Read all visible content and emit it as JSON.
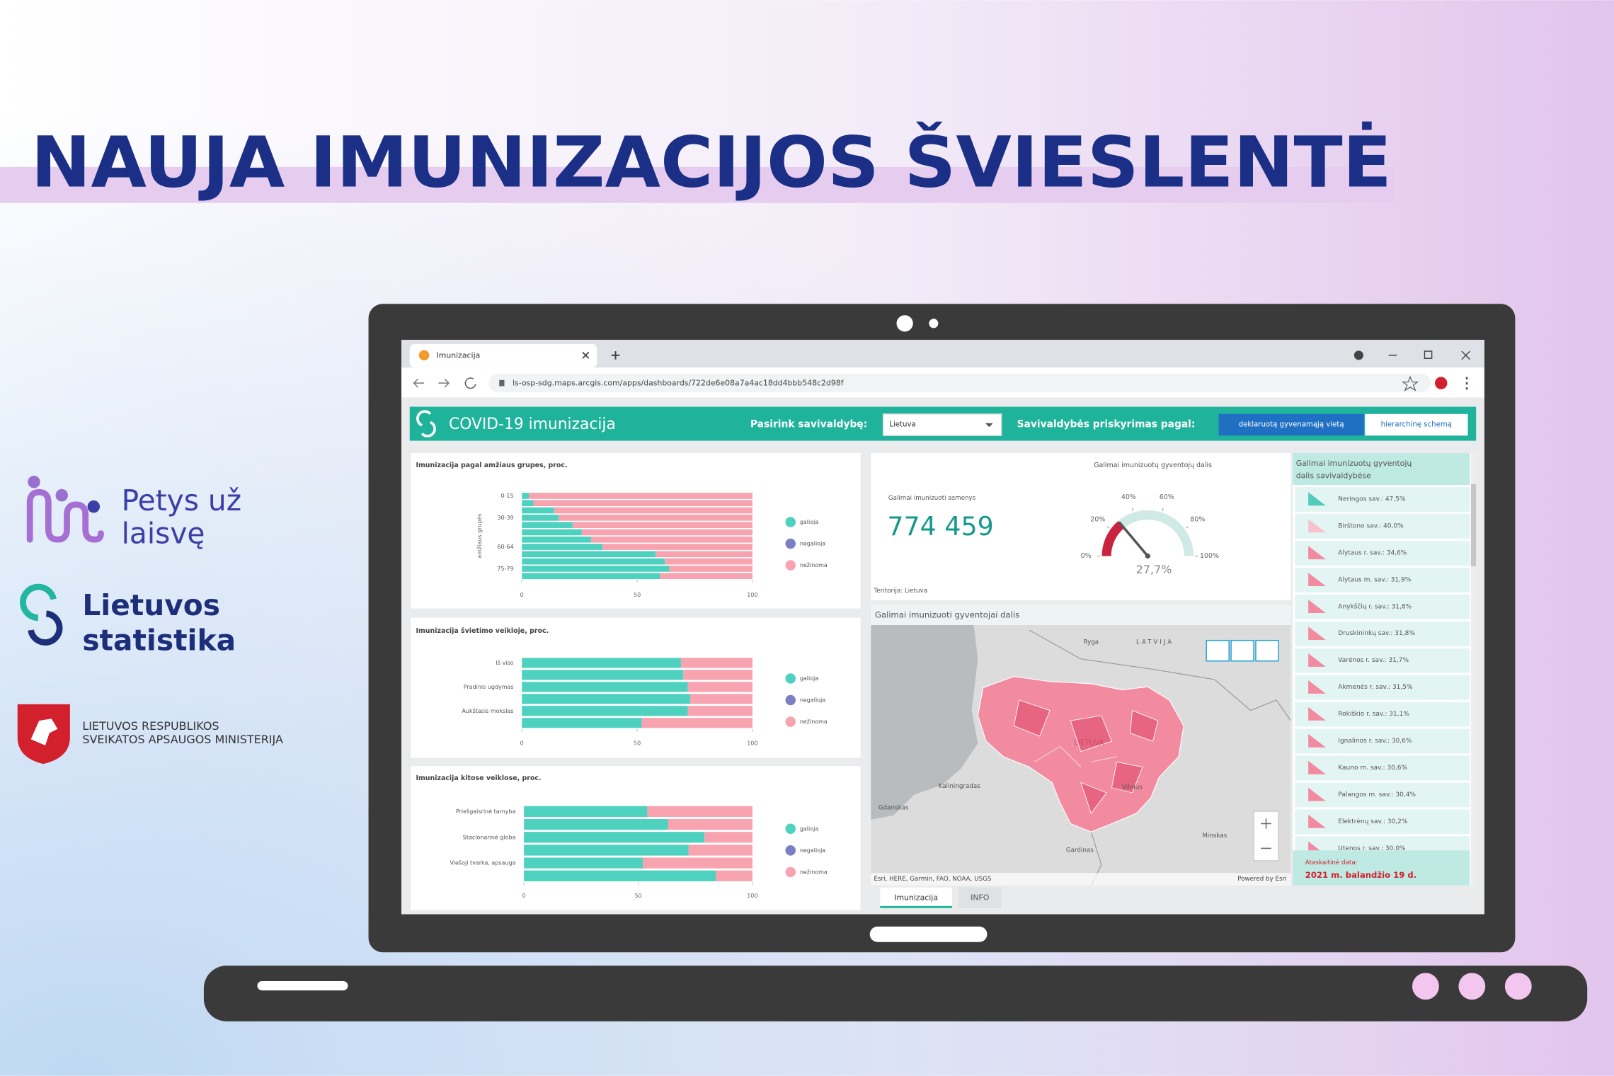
{
  "header": {
    "title": "NAUJA IMUNIZACIJOS ŠVIESLENTĖ"
  },
  "logos": {
    "petys": [
      "Petys už",
      "laisvę"
    ],
    "statistika": [
      "Lietuvos",
      "statistika"
    ],
    "ministerija": [
      "LIETUVOS RESPUBLIKOS",
      "SVEIKATOS APSAUGOS MINISTERIJA"
    ]
  },
  "browser": {
    "tab": "Imunizacija",
    "url": "ls-osp-sdg.maps.arcgis.com/apps/dashboards/722de6e08a7a4ac18dd4bbb548c2d98f"
  },
  "dashboard": {
    "title": "COVID-19 imunizacija",
    "select_label": "Pasirink savivaldybę:",
    "select_value": "Lietuva",
    "assign_label": "Savivaldybės priskyrimas pagal:",
    "buttons": [
      "deklaruotą gyvenamąją vietą",
      "hierarchinę schemą"
    ],
    "indicator": {
      "label": "Galimai imunizuoti asmenys",
      "value": "774 459",
      "territory": "Teritorija: Lietuva"
    },
    "map": {
      "title": "Galimai imunizuoti gyventojai dalis",
      "places": [
        "Ryga",
        "LATVIJA",
        "LIETUVA",
        "Vilnius",
        "Kaliningradas",
        "Gdanskas",
        "Gardinas",
        "Minskas"
      ],
      "attribution": "Esri, HERE, Garmin, FAO, NOAA, USGS",
      "powered": "Powered by Esri"
    },
    "list": {
      "header": [
        "Galimai imunizuotų gyventojų",
        "dalis savivaldybėse"
      ],
      "items": [
        "Neringos sav.: 47,5%",
        "Birštono sav.: 40,0%",
        "Alytaus r. sav.: 34,6%",
        "Alytaus m. sav.: 31,9%",
        "Anykščių r. sav.: 31,8%",
        "Druskininkų sav.: 31,8%",
        "Varėnos r. sav.: 31,7%",
        "Akmenės r. sav.: 31,5%",
        "Rokiškio r. sav.: 31,1%",
        "Ignalinos r. sav.: 30,6%",
        "Kauno m. sav.: 30,6%",
        "Palangos m. sav.: 30,4%",
        "Elektrėnų sav.: 30,2%",
        "Utenos r. sav.: 30,0%"
      ],
      "date_label": "Ataskaitinė data:",
      "date": "2021 m. balandžio 19 d."
    },
    "tabs": [
      "Imunizacija",
      "INFO"
    ]
  },
  "chart_data": [
    {
      "type": "bar",
      "orientation": "horizontal",
      "stacked": true,
      "title": "Imunizacija pagal amžiaus grupes, proc.",
      "y_label": "amžiaus grupės",
      "categories": [
        "0-15",
        null,
        null,
        "30-39",
        null,
        null,
        null,
        "60-64",
        null,
        null,
        "75-79",
        null
      ],
      "series": [
        {
          "name": "galioja",
          "color": "#4fd1c0",
          "values": [
            3,
            5,
            14,
            16,
            22,
            26,
            30,
            35,
            58,
            62,
            64,
            60
          ]
        },
        {
          "name": "negalioja",
          "color": "#7b7fc4",
          "values": [
            0,
            0,
            0,
            0,
            0,
            0,
            0,
            0,
            0,
            0,
            0,
            0
          ]
        },
        {
          "name": "nežinoma",
          "color": "#f7a3b0",
          "values": [
            97,
            95,
            86,
            84,
            78,
            74,
            70,
            65,
            42,
            38,
            36,
            40
          ]
        }
      ],
      "xlim": [
        0,
        100
      ],
      "xticks": [
        0,
        50,
        100
      ]
    },
    {
      "type": "bar",
      "orientation": "horizontal",
      "stacked": true,
      "title": "Imunizacija švietimo veikloje, proc.",
      "categories": [
        "Iš viso",
        null,
        "Pradinis ugdymas",
        null,
        "Aukštasis mokslas",
        null
      ],
      "series": [
        {
          "name": "galioja",
          "color": "#4fd1c0",
          "values": [
            69,
            70,
            72,
            73,
            72,
            52
          ]
        },
        {
          "name": "negalioja",
          "color": "#7b7fc4",
          "values": [
            0,
            0,
            0,
            0,
            0,
            0
          ]
        },
        {
          "name": "nežinoma",
          "color": "#f7a3b0",
          "values": [
            31,
            30,
            28,
            27,
            28,
            48
          ]
        }
      ],
      "xlim": [
        0,
        100
      ],
      "xticks": [
        0,
        50,
        100
      ]
    },
    {
      "type": "bar",
      "orientation": "horizontal",
      "stacked": true,
      "title": "Imunizacija kitose veiklose, proc.",
      "categories": [
        "Priešgaisrinė tarnyba",
        null,
        "Stacionarinė globa",
        null,
        "Viešoji tvarka, apsauga",
        null
      ],
      "series": [
        {
          "name": "galioja",
          "color": "#4fd1c0",
          "values": [
            54,
            63,
            79,
            72,
            52,
            84
          ]
        },
        {
          "name": "negalioja",
          "color": "#7b7fc4",
          "values": [
            0,
            0,
            0,
            0,
            0,
            0
          ]
        },
        {
          "name": "nežinoma",
          "color": "#f7a3b0",
          "values": [
            46,
            37,
            21,
            28,
            48,
            16
          ]
        }
      ],
      "xlim": [
        0,
        100
      ],
      "xticks": [
        0,
        50,
        100
      ]
    },
    {
      "type": "gauge",
      "title": "Galimai imunizuotų gyventojų dalis",
      "value": 27.7,
      "value_label": "27,7%",
      "color": "#c8243f",
      "lim": [
        0,
        100
      ],
      "ticks": [
        {
          "value": 0,
          "label": "0%"
        },
        {
          "value": 20,
          "label": "20%"
        },
        {
          "value": 40,
          "label": "40%"
        },
        {
          "value": 60,
          "label": "60%"
        },
        {
          "value": 80,
          "label": "80%"
        },
        {
          "value": 100,
          "label": "100%"
        }
      ]
    }
  ]
}
